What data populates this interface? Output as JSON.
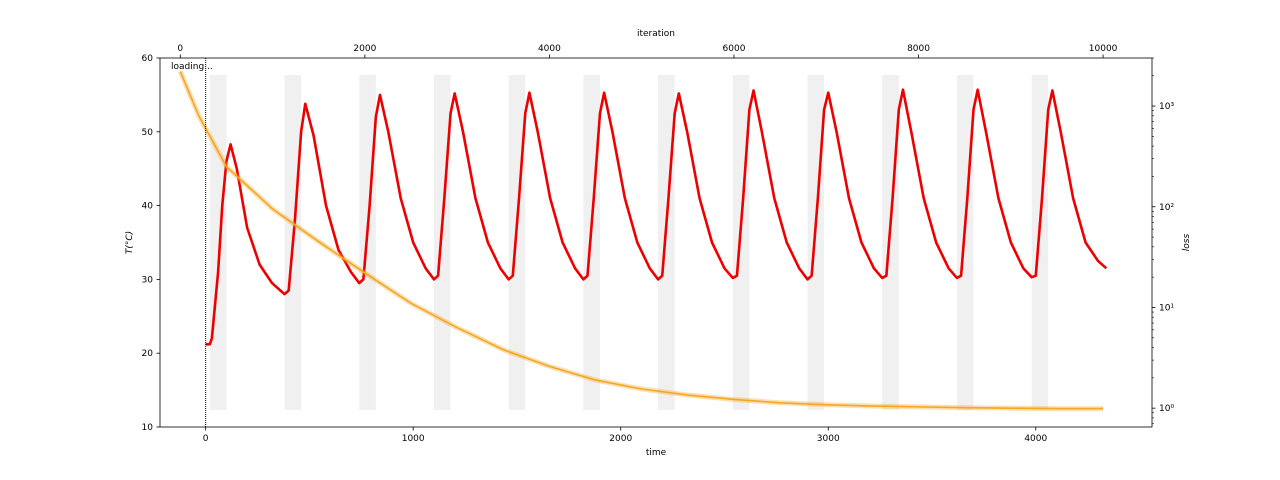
{
  "chart_data": {
    "type": "line",
    "xlabel": "time",
    "x2label": "iteration",
    "ylabel": "T(°C)",
    "y2label": "loss",
    "status_text": "loading...",
    "xlim": [
      -220,
      4560
    ],
    "ylim": [
      10,
      60
    ],
    "x2lim": [
      -220,
      10530
    ],
    "y2lim": [
      0.65,
      3000
    ],
    "y2scale": "log",
    "x_ticks": [
      0,
      1000,
      2000,
      3000,
      4000
    ],
    "y_ticks": [
      10,
      20,
      30,
      40,
      50,
      60
    ],
    "x2_ticks": [
      0,
      2000,
      4000,
      6000,
      8000,
      10000
    ],
    "y2_ticks": [
      {
        "value": 1,
        "label": "10⁰"
      },
      {
        "value": 10,
        "label": "10¹"
      },
      {
        "value": 100,
        "label": "10²"
      },
      {
        "value": 1000,
        "label": "10³"
      }
    ],
    "colors": {
      "temperature": "#ee0000",
      "loss": "#f5a623",
      "heating_bands": "#f0f0f0",
      "marker_line": "#000000"
    },
    "heating_bands": [
      [
        20,
        100
      ],
      [
        380,
        460
      ],
      [
        740,
        820
      ],
      [
        1100,
        1180
      ],
      [
        1460,
        1540
      ],
      [
        1820,
        1900
      ],
      [
        2180,
        2260
      ],
      [
        2540,
        2620
      ],
      [
        2900,
        2980
      ],
      [
        3260,
        3340
      ],
      [
        3620,
        3700
      ],
      [
        3980,
        4060
      ]
    ],
    "band_y_range": [
      12.3,
      57.7
    ],
    "marker_x": 0,
    "series": [
      {
        "key": "temperature",
        "axis": "left",
        "x": [
          0,
          20,
          30,
          60,
          80,
          100,
          120,
          150,
          200,
          260,
          320,
          360,
          380,
          400,
          430,
          460,
          480,
          520,
          580,
          640,
          700,
          740,
          760,
          790,
          820,
          840,
          880,
          940,
          1000,
          1060,
          1100,
          1120,
          1150,
          1180,
          1200,
          1240,
          1300,
          1360,
          1420,
          1460,
          1480,
          1510,
          1540,
          1560,
          1600,
          1660,
          1720,
          1780,
          1820,
          1840,
          1870,
          1900,
          1920,
          1960,
          2020,
          2080,
          2140,
          2180,
          2200,
          2230,
          2260,
          2280,
          2320,
          2380,
          2440,
          2500,
          2540,
          2560,
          2590,
          2620,
          2640,
          2680,
          2740,
          2800,
          2860,
          2900,
          2920,
          2950,
          2980,
          3000,
          3040,
          3100,
          3160,
          3220,
          3260,
          3280,
          3310,
          3340,
          3360,
          3400,
          3460,
          3520,
          3580,
          3620,
          3640,
          3670,
          3700,
          3720,
          3760,
          3820,
          3880,
          3940,
          3980,
          4000,
          4030,
          4060,
          4080,
          4120,
          4180,
          4240,
          4300,
          4340
        ],
        "y": [
          21.2,
          21.2,
          22,
          31,
          40,
          46,
          48.3,
          45,
          37,
          32,
          29.5,
          28.5,
          28,
          28.5,
          38,
          50,
          53.8,
          49.5,
          40,
          34,
          31,
          29.5,
          30,
          40,
          52,
          55,
          50,
          41,
          35,
          31.5,
          30,
          30.5,
          41,
          52.5,
          55.2,
          50,
          41,
          35,
          31.5,
          30,
          30.5,
          41,
          52.5,
          55.3,
          50,
          41,
          35,
          31.5,
          30,
          30.5,
          41,
          52.5,
          55.3,
          50,
          41,
          35,
          31.5,
          30,
          30.5,
          41,
          52.5,
          55.2,
          50,
          41,
          35,
          31.5,
          30.2,
          30.5,
          41,
          53,
          55.6,
          50,
          41,
          35,
          31.5,
          30,
          30.5,
          41,
          53,
          55.3,
          50,
          41,
          35,
          31.5,
          30.2,
          30.5,
          41,
          53,
          55.7,
          50,
          41,
          35,
          31.5,
          30.2,
          30.5,
          41,
          53,
          55.7,
          50,
          41,
          35,
          31.5,
          30.3,
          30.5,
          41,
          53,
          55.6,
          50,
          41,
          35,
          32.5,
          31.5
        ]
      },
      {
        "key": "loss",
        "axis": "right",
        "x": [
          0,
          200,
          500,
          1000,
          1500,
          2000,
          2500,
          3000,
          3500,
          4000,
          4500,
          5000,
          5500,
          6000,
          6500,
          7000,
          7500,
          8000,
          8500,
          9000,
          9500,
          10000
        ],
        "y": [
          2200,
          800,
          250,
          95,
          45,
          22,
          11,
          6.3,
          3.8,
          2.6,
          1.9,
          1.55,
          1.35,
          1.22,
          1.13,
          1.08,
          1.05,
          1.03,
          1.01,
          1.0,
          0.99,
          0.99
        ]
      }
    ]
  }
}
